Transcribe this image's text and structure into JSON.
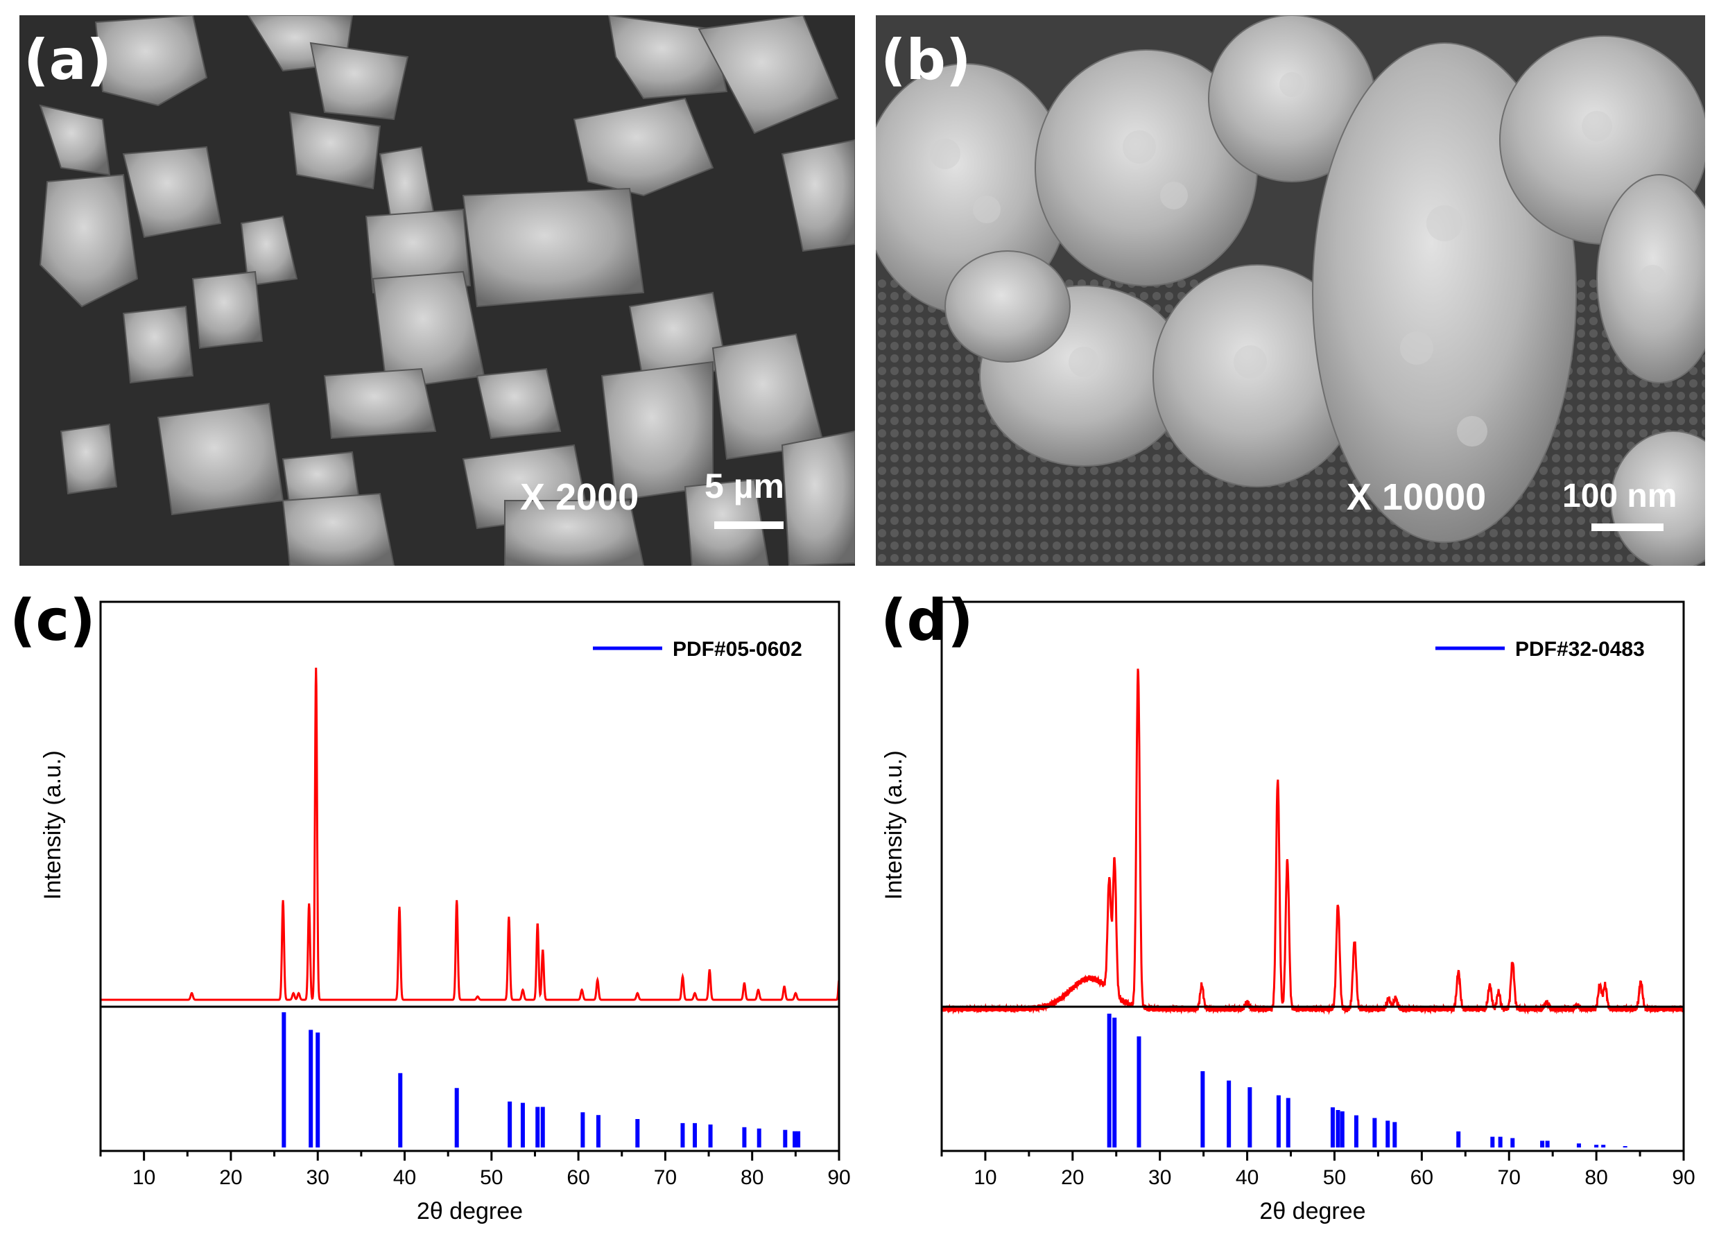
{
  "panels": {
    "a": {
      "letter": "(a)",
      "magnification": "X 2000",
      "scale_bar": "5 µm"
    },
    "b": {
      "letter": "(b)",
      "magnification": "X 10000",
      "scale_bar": "100 nm"
    },
    "c": {
      "letter": "(c)"
    },
    "d": {
      "letter": "(d)"
    }
  },
  "chart_data": [
    {
      "type": "line",
      "panel": "c",
      "xlabel": "2θ degree",
      "ylabel": "Intensity (a.u.)",
      "xlim": [
        5,
        90
      ],
      "xticks": [
        10,
        20,
        30,
        40,
        50,
        60,
        70,
        80,
        90
      ],
      "line_color": "#ff0000",
      "reference_color": "#0000ff",
      "legend": {
        "label": "PDF#05-0602",
        "placement": "top-right"
      },
      "pattern_peaks": [
        {
          "x": 15.5,
          "h": 0.02,
          "w": 0.3
        },
        {
          "x": 26.0,
          "h": 0.3,
          "w": 0.28
        },
        {
          "x": 27.2,
          "h": 0.02,
          "w": 0.3
        },
        {
          "x": 27.8,
          "h": 0.02,
          "w": 0.3
        },
        {
          "x": 29.0,
          "h": 0.29,
          "w": 0.28
        },
        {
          "x": 29.8,
          "h": 1.0,
          "w": 0.28
        },
        {
          "x": 39.4,
          "h": 0.28,
          "w": 0.28
        },
        {
          "x": 46.0,
          "h": 0.3,
          "w": 0.28
        },
        {
          "x": 48.4,
          "h": 0.01,
          "w": 0.3
        },
        {
          "x": 52.0,
          "h": 0.25,
          "w": 0.28
        },
        {
          "x": 53.6,
          "h": 0.03,
          "w": 0.3
        },
        {
          "x": 55.3,
          "h": 0.23,
          "w": 0.28
        },
        {
          "x": 55.9,
          "h": 0.15,
          "w": 0.28
        },
        {
          "x": 60.4,
          "h": 0.03,
          "w": 0.3
        },
        {
          "x": 62.2,
          "h": 0.06,
          "w": 0.28
        },
        {
          "x": 66.8,
          "h": 0.02,
          "w": 0.3
        },
        {
          "x": 72.0,
          "h": 0.07,
          "w": 0.28
        },
        {
          "x": 73.4,
          "h": 0.02,
          "w": 0.3
        },
        {
          "x": 75.1,
          "h": 0.09,
          "w": 0.28
        },
        {
          "x": 79.1,
          "h": 0.05,
          "w": 0.28
        },
        {
          "x": 80.7,
          "h": 0.03,
          "w": 0.3
        },
        {
          "x": 83.7,
          "h": 0.04,
          "w": 0.28
        },
        {
          "x": 85.0,
          "h": 0.02,
          "w": 0.3
        },
        {
          "x": 90.0,
          "h": 0.06,
          "w": 0.2
        }
      ],
      "reference_lines": [
        {
          "x": 26.1,
          "h": 1.0
        },
        {
          "x": 29.2,
          "h": 0.87
        },
        {
          "x": 30.0,
          "h": 0.85
        },
        {
          "x": 39.5,
          "h": 0.55
        },
        {
          "x": 46.0,
          "h": 0.44
        },
        {
          "x": 52.1,
          "h": 0.34
        },
        {
          "x": 53.6,
          "h": 0.33
        },
        {
          "x": 55.3,
          "h": 0.3
        },
        {
          "x": 55.9,
          "h": 0.3
        },
        {
          "x": 60.5,
          "h": 0.26
        },
        {
          "x": 62.3,
          "h": 0.24
        },
        {
          "x": 66.8,
          "h": 0.21
        },
        {
          "x": 72.0,
          "h": 0.18
        },
        {
          "x": 73.4,
          "h": 0.18
        },
        {
          "x": 75.2,
          "h": 0.17
        },
        {
          "x": 79.1,
          "h": 0.15
        },
        {
          "x": 80.8,
          "h": 0.14
        },
        {
          "x": 83.8,
          "h": 0.13
        },
        {
          "x": 84.9,
          "h": 0.12
        },
        {
          "x": 85.3,
          "h": 0.12
        }
      ]
    },
    {
      "type": "line",
      "panel": "d",
      "xlabel": "2θ degree",
      "ylabel": "Intensity (a.u.)",
      "xlim": [
        5,
        90
      ],
      "xticks": [
        10,
        20,
        30,
        40,
        50,
        60,
        70,
        80,
        90
      ],
      "line_color": "#ff0000",
      "reference_color": "#0000ff",
      "legend": {
        "label": "PDF#32-0483",
        "placement": "top-right"
      },
      "amorphous_hump": {
        "center": 22.0,
        "height": 0.09,
        "sigma": 2.3
      },
      "pattern_peaks": [
        {
          "x": 24.2,
          "h": 0.33,
          "w": 0.45
        },
        {
          "x": 24.8,
          "h": 0.4,
          "w": 0.45
        },
        {
          "x": 27.5,
          "h": 1.0,
          "w": 0.45
        },
        {
          "x": 34.8,
          "h": 0.07,
          "w": 0.45
        },
        {
          "x": 40.0,
          "h": 0.02,
          "w": 0.5
        },
        {
          "x": 43.5,
          "h": 0.68,
          "w": 0.45
        },
        {
          "x": 44.6,
          "h": 0.44,
          "w": 0.45
        },
        {
          "x": 50.4,
          "h": 0.31,
          "w": 0.45
        },
        {
          "x": 52.3,
          "h": 0.2,
          "w": 0.45
        },
        {
          "x": 56.2,
          "h": 0.03,
          "w": 0.5
        },
        {
          "x": 57.0,
          "h": 0.03,
          "w": 0.5
        },
        {
          "x": 64.2,
          "h": 0.11,
          "w": 0.45
        },
        {
          "x": 67.8,
          "h": 0.07,
          "w": 0.45
        },
        {
          "x": 68.8,
          "h": 0.05,
          "w": 0.45
        },
        {
          "x": 70.4,
          "h": 0.14,
          "w": 0.45
        },
        {
          "x": 74.3,
          "h": 0.02,
          "w": 0.5
        },
        {
          "x": 77.8,
          "h": 0.01,
          "w": 0.5
        },
        {
          "x": 80.4,
          "h": 0.07,
          "w": 0.45
        },
        {
          "x": 81.0,
          "h": 0.07,
          "w": 0.45
        },
        {
          "x": 85.1,
          "h": 0.08,
          "w": 0.45
        }
      ],
      "reference_lines": [
        {
          "x": 24.2,
          "h": 1.0
        },
        {
          "x": 24.8,
          "h": 0.97
        },
        {
          "x": 27.6,
          "h": 0.83
        },
        {
          "x": 34.9,
          "h": 0.57
        },
        {
          "x": 37.9,
          "h": 0.5
        },
        {
          "x": 40.3,
          "h": 0.45
        },
        {
          "x": 43.6,
          "h": 0.39
        },
        {
          "x": 44.7,
          "h": 0.37
        },
        {
          "x": 49.8,
          "h": 0.3
        },
        {
          "x": 50.4,
          "h": 0.28
        },
        {
          "x": 50.9,
          "h": 0.27
        },
        {
          "x": 52.5,
          "h": 0.24
        },
        {
          "x": 54.6,
          "h": 0.22
        },
        {
          "x": 56.1,
          "h": 0.2
        },
        {
          "x": 56.9,
          "h": 0.19
        },
        {
          "x": 64.2,
          "h": 0.12
        },
        {
          "x": 68.1,
          "h": 0.08
        },
        {
          "x": 69.0,
          "h": 0.08
        },
        {
          "x": 70.4,
          "h": 0.07
        },
        {
          "x": 73.8,
          "h": 0.05
        },
        {
          "x": 74.4,
          "h": 0.05
        },
        {
          "x": 78.0,
          "h": 0.03
        },
        {
          "x": 80.0,
          "h": 0.02
        },
        {
          "x": 80.8,
          "h": 0.02
        },
        {
          "x": 83.3,
          "h": 0.01
        }
      ]
    }
  ]
}
